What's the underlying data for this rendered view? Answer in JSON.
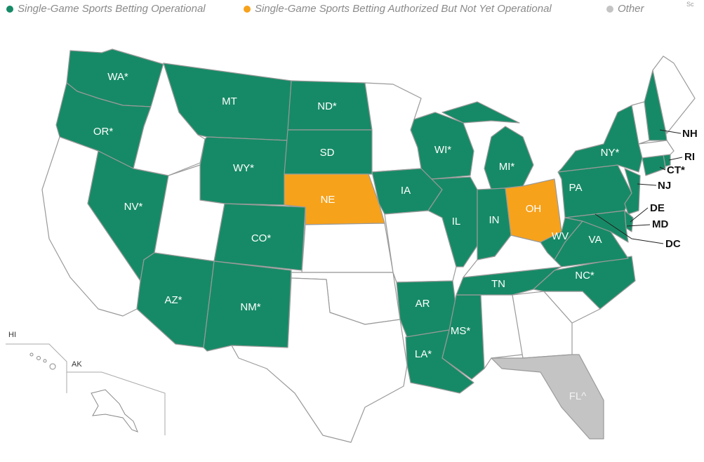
{
  "legend": [
    {
      "label": "Single-Game Sports Betting Operational",
      "color": "#168a66"
    },
    {
      "label": "Single-Game Sports Betting Authorized But Not Yet Operational",
      "color": "#f7a21b"
    },
    {
      "label": "Other",
      "color": "#c4c4c4"
    }
  ],
  "note": "Sc",
  "states": [
    {
      "label": "WA*"
    },
    {
      "label": "OR*"
    },
    {
      "label": "NV*"
    },
    {
      "label": "AZ*"
    },
    {
      "label": "MT"
    },
    {
      "label": "WY*"
    },
    {
      "label": "CO*"
    },
    {
      "label": "NM*"
    },
    {
      "label": "ND*"
    },
    {
      "label": "SD"
    },
    {
      "label": "NE"
    },
    {
      "label": "IA"
    },
    {
      "label": "AR"
    },
    {
      "label": "LA*"
    },
    {
      "label": "MS*"
    },
    {
      "label": "TN"
    },
    {
      "label": "WI*"
    },
    {
      "label": "MI*"
    },
    {
      "label": "IL"
    },
    {
      "label": "IN"
    },
    {
      "label": "OH"
    },
    {
      "label": "WV"
    },
    {
      "label": "VA"
    },
    {
      "label": "NC*"
    },
    {
      "label": "PA"
    },
    {
      "label": "NY*"
    },
    {
      "label": "FL^"
    },
    {
      "label": "NH"
    },
    {
      "label": "RI"
    },
    {
      "label": "CT*"
    },
    {
      "label": "NJ"
    },
    {
      "label": "DE"
    },
    {
      "label": "MD"
    },
    {
      "label": "DC"
    }
  ],
  "insets": [
    "HI",
    "AK"
  ]
}
